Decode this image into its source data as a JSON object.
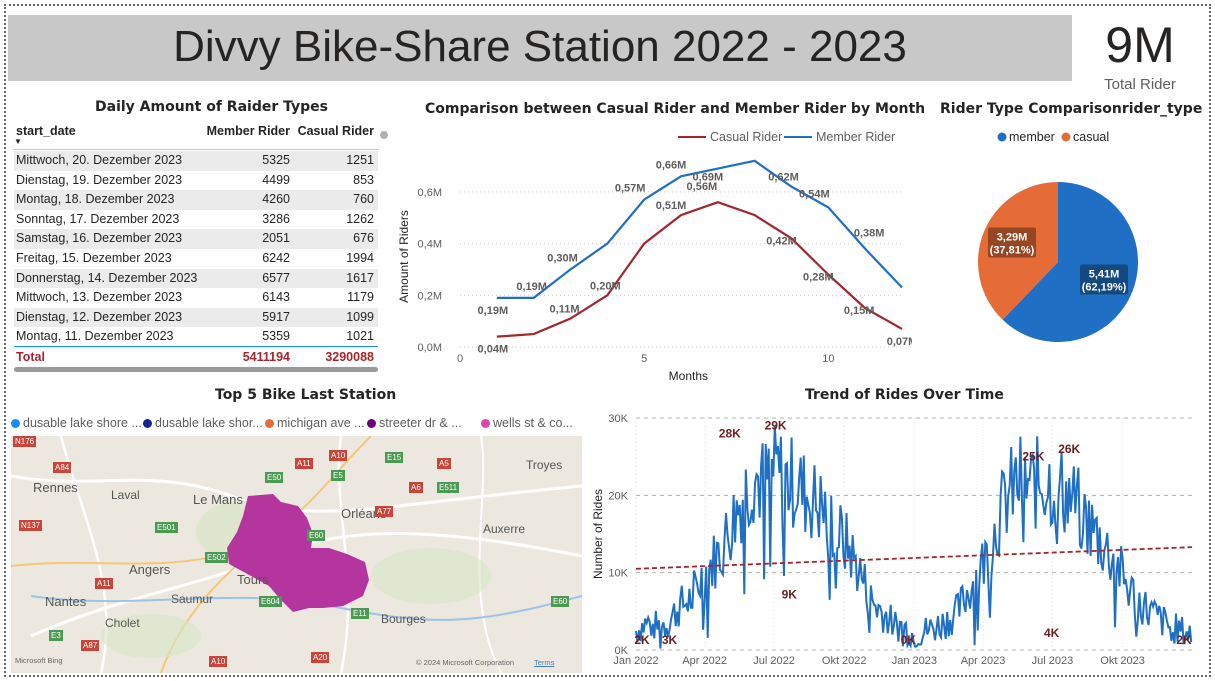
{
  "header": {
    "title": "Divvy Bike-Share Station 2022 - 2023",
    "kpi_value": "9M",
    "kpi_label": "Total Rider"
  },
  "table_visual": {
    "title": "Daily Amount of Raider Types",
    "columns": [
      "start_date",
      "Member Rider",
      "Casual Rider"
    ],
    "rows": [
      [
        "Mittwoch, 20. Dezember 2023",
        "5325",
        "1251"
      ],
      [
        "Dienstag, 19. Dezember 2023",
        "4499",
        "853"
      ],
      [
        "Montag, 18. Dezember 2023",
        "4260",
        "760"
      ],
      [
        "Sonntag, 17. Dezember 2023",
        "3286",
        "1262"
      ],
      [
        "Samstag, 16. Dezember 2023",
        "2051",
        "676"
      ],
      [
        "Freitag, 15. Dezember 2023",
        "6242",
        "1994"
      ],
      [
        "Donnerstag, 14. Dezember 2023",
        "6577",
        "1617"
      ],
      [
        "Mittwoch, 13. Dezember 2023",
        "6143",
        "1179"
      ],
      [
        "Dienstag, 12. Dezember 2023",
        "5917",
        "1099"
      ],
      [
        "Montag, 11. Dezember 2023",
        "5359",
        "1021"
      ]
    ],
    "total": {
      "label": "Total",
      "member": "5411194",
      "casual": "3290088"
    }
  },
  "line_visual": {
    "title": "Comparison between Casual Rider and Member Rider by Month"
  },
  "pie_visual": {
    "title": "Rider Type Comparisonrider_type"
  },
  "map_visual": {
    "title": "Top 5 Bike Last Station",
    "legend": [
      {
        "label": "dusable lake shore ...",
        "color": "#118dff"
      },
      {
        "label": "dusable lake shor...",
        "color": "#12239e"
      },
      {
        "label": "michigan ave ...",
        "color": "#e66c37"
      },
      {
        "label": "streeter dr & ...",
        "color": "#6b007b"
      },
      {
        "label": "wells st & co...",
        "color": "#e044a7"
      }
    ],
    "places": [
      "Rennes",
      "Laval",
      "Le Mans",
      "Orléans",
      "Troyes",
      "Auxerre",
      "Angers",
      "Tours",
      "Saumur",
      "Nantes",
      "Cholet",
      "Bourges"
    ],
    "roads": [
      "N176",
      "A84",
      "A11",
      "A10",
      "E5",
      "E15",
      "A5",
      "E50",
      "A6",
      "E511",
      "N137",
      "E501",
      "A77",
      "E60",
      "E502",
      "A11",
      "E604",
      "E11",
      "E60",
      "E3",
      "A87",
      "A10",
      "A20"
    ],
    "provider": "Microsoft Bing",
    "copyright": "© 2024 Microsoft Corporation",
    "terms": "Terms"
  },
  "trend_visual": {
    "title": "Trend of Rides Over Time"
  },
  "chart_data": [
    {
      "type": "line",
      "title": "Comparison between Casual Rider and Member Rider by Month",
      "xlabel": "Months",
      "ylabel": "Amount of Riders",
      "x": [
        1,
        2,
        3,
        4,
        5,
        6,
        7,
        8,
        9,
        10,
        11,
        12
      ],
      "xlim": [
        0,
        12
      ],
      "xticks": [
        "0",
        "5",
        "10"
      ],
      "ylim": [
        0,
        0.7
      ],
      "yticks": [
        "0,0M",
        "0,2M",
        "0,4M",
        "0,6M"
      ],
      "grid": true,
      "legend_position": "top-right",
      "series": [
        {
          "name": "Casual Rider",
          "color": "#a4262c",
          "values": [
            0.04,
            0.05,
            0.11,
            0.2,
            0.4,
            0.51,
            0.56,
            0.51,
            0.42,
            0.28,
            0.15,
            0.07
          ],
          "labels": [
            "0,04M",
            "",
            "0,11M",
            "0,20M",
            "",
            "0,51M",
            "0,56M",
            "",
            "0,42M",
            "0,28M",
            "0,15M",
            "0,07M"
          ]
        },
        {
          "name": "Member Rider",
          "color": "#1f6fc5",
          "values": [
            0.19,
            0.19,
            0.3,
            0.4,
            0.57,
            0.66,
            0.69,
            0.72,
            0.62,
            0.54,
            0.38,
            0.23
          ],
          "labels": [
            "0,19M",
            "0,19M",
            "0,30M",
            "",
            "0,57M",
            "0,66M",
            "0,69M",
            "",
            "0,62M",
            "0,54M",
            "0,38M",
            ""
          ]
        }
      ]
    },
    {
      "type": "pie",
      "title": "Rider Type Comparisonrider_type",
      "legend_position": "top",
      "categories": [
        "member",
        "casual"
      ],
      "values": [
        5.41,
        3.29
      ],
      "colors": [
        "#1f6fc5",
        "#e66c37"
      ],
      "labels": [
        [
          "5,41M",
          "(62,19%)"
        ],
        [
          "3,29M",
          "(37,81%)"
        ]
      ]
    },
    {
      "type": "line",
      "title": "Trend of Rides Over Time",
      "ylabel": "Number of Rides",
      "xlim": [
        "2022-01-01",
        "2023-12-31"
      ],
      "xticks": [
        "Jan 2022",
        "Apr 2022",
        "Jul 2022",
        "Okt 2022",
        "Jan 2023",
        "Apr 2023",
        "Jul 2023",
        "Okt 2023"
      ],
      "ylim": [
        0,
        30000
      ],
      "yticks": [
        "0K",
        "10K",
        "20K",
        "30K"
      ],
      "grid": true,
      "series": [
        {
          "name": "",
          "color": "#1f6fc5",
          "values": [
            [
              0,
              2500
            ],
            [
              14,
              3500
            ],
            [
              28,
              3000
            ],
            [
              42,
              3600
            ],
            [
              56,
              5500
            ],
            [
              70,
              6500
            ],
            [
              84,
              9000
            ],
            [
              98,
              11000
            ],
            [
              112,
              13000
            ],
            [
              126,
              16500
            ],
            [
              140,
              20000
            ],
            [
              154,
              22500
            ],
            [
              168,
              21500
            ],
            [
              182,
              23500
            ],
            [
              196,
              22000
            ],
            [
              210,
              21500
            ],
            [
              224,
              20000
            ],
            [
              238,
              19000
            ],
            [
              252,
              17500
            ],
            [
              266,
              15000
            ],
            [
              280,
              13000
            ],
            [
              294,
              10000
            ],
            [
              308,
              6500
            ],
            [
              322,
              5000
            ],
            [
              336,
              3500
            ],
            [
              350,
              3000
            ],
            [
              365,
              2000
            ],
            [
              379,
              2500
            ],
            [
              393,
              3000
            ],
            [
              407,
              3800
            ],
            [
              421,
              4800
            ],
            [
              435,
              7500
            ],
            [
              449,
              10000
            ],
            [
              463,
              13000
            ],
            [
              477,
              17500
            ],
            [
              491,
              20500
            ],
            [
              505,
              22000
            ],
            [
              519,
              21000
            ],
            [
              533,
              22000
            ],
            [
              547,
              21500
            ],
            [
              561,
              20500
            ],
            [
              575,
              19000
            ],
            [
              589,
              17000
            ],
            [
              603,
              15000
            ],
            [
              617,
              13000
            ],
            [
              631,
              11000
            ],
            [
              645,
              8000
            ],
            [
              659,
              6500
            ],
            [
              673,
              5000
            ],
            [
              687,
              4000
            ],
            [
              700,
              3000
            ],
            [
              729,
              2000
            ]
          ],
          "callouts": [
            {
              "date": "2022-01-01",
              "value": 2000,
              "label": "2K"
            },
            {
              "date": "2022-02-14",
              "value": 3000,
              "label": "3K"
            },
            {
              "date": "2022-05-04",
              "value": 28000,
              "label": "28K"
            },
            {
              "date": "2022-07-03",
              "value": 29000,
              "label": "29K"
            },
            {
              "date": "2022-07-21",
              "value": 9000,
              "label": "9K"
            },
            {
              "date": "2022-12-24",
              "value": 0,
              "label": "0K"
            },
            {
              "date": "2023-06-06",
              "value": 25000,
              "label": "25K"
            },
            {
              "date": "2023-06-30",
              "value": 4000,
              "label": "4K"
            },
            {
              "date": "2023-07-23",
              "value": 26000,
              "label": "26K"
            },
            {
              "date": "2023-12-31",
              "value": 2000,
              "label": "2K"
            }
          ]
        },
        {
          "name": "",
          "color": "#a4262c",
          "style": "dashed-trend",
          "values": [
            [
              0,
              10500
            ],
            [
              729,
              13300
            ]
          ]
        }
      ]
    }
  ]
}
